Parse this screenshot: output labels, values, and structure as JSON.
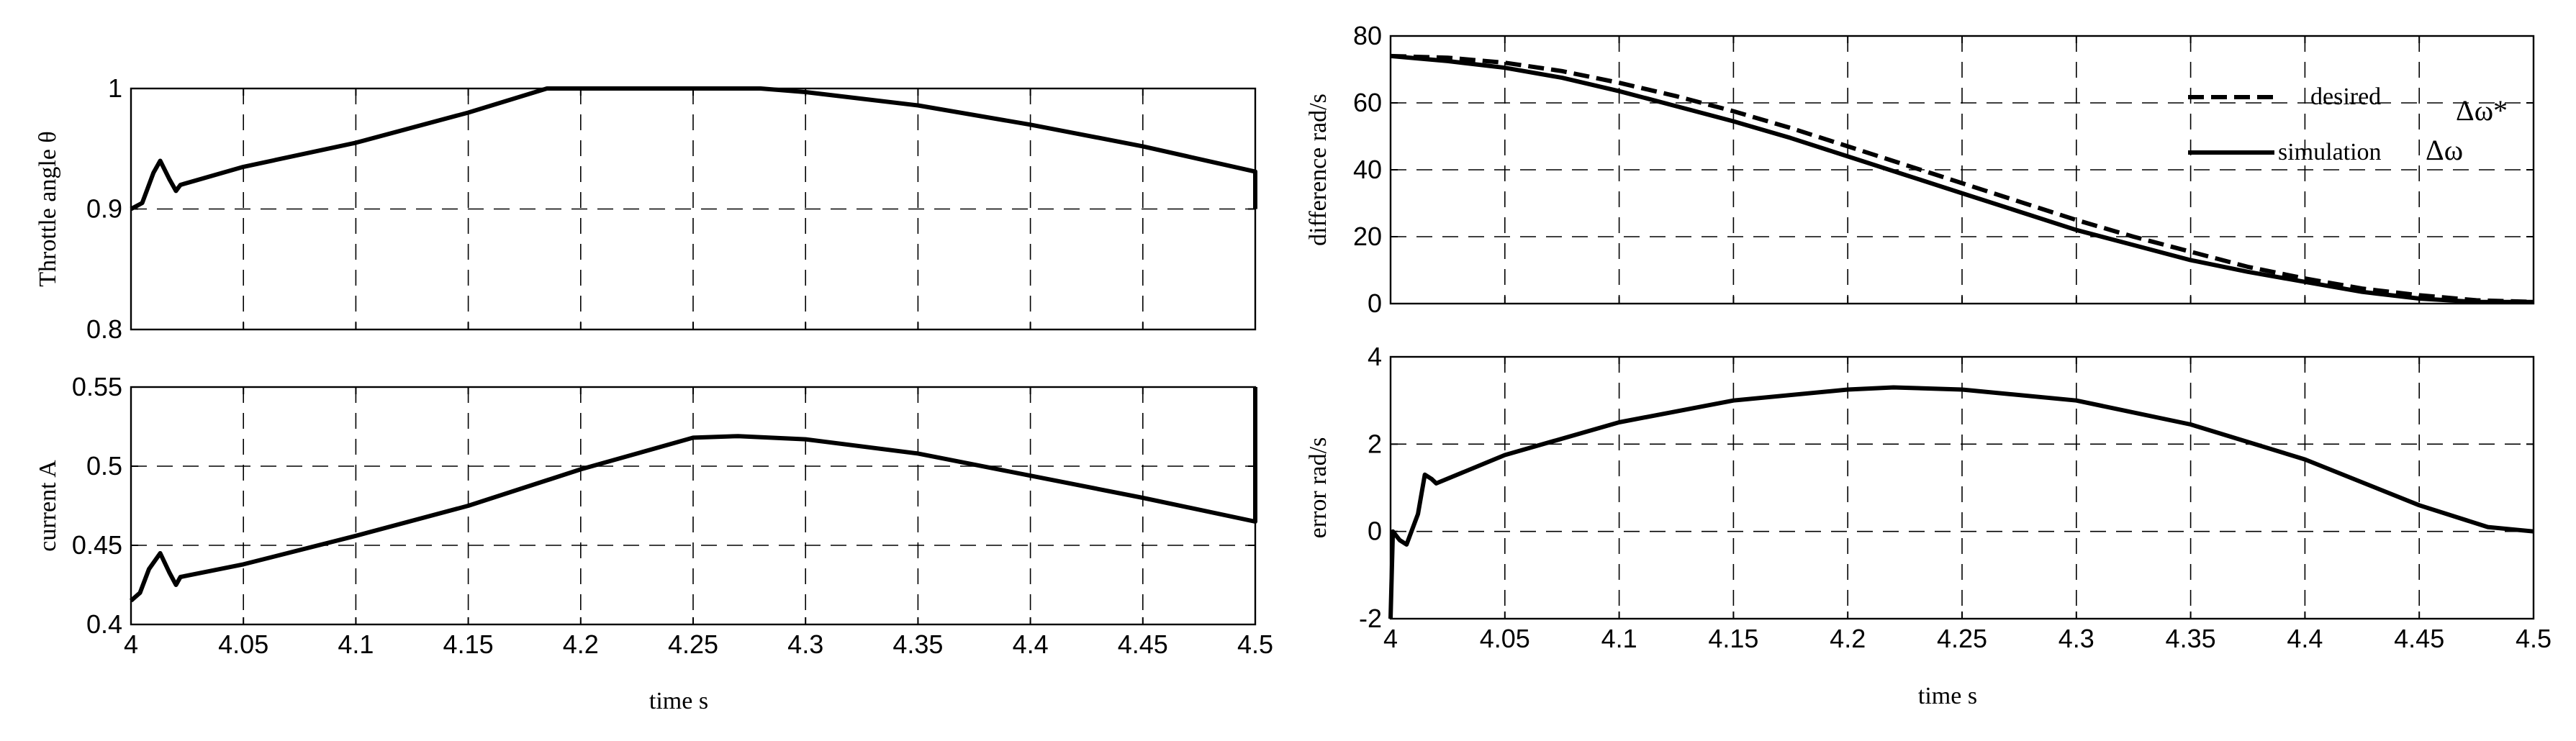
{
  "chart_data": [
    {
      "type": "line",
      "ylabel": "Throttle angle  θ",
      "xlabel": "",
      "xlim": [
        4,
        4.5
      ],
      "ylim": [
        0.8,
        1
      ],
      "xticks": [
        4,
        4.05,
        4.1,
        4.15,
        4.2,
        4.25,
        4.3,
        4.35,
        4.4,
        4.45,
        4.5
      ],
      "yticks": [
        0.8,
        0.9,
        1
      ],
      "xtick_labels": [],
      "ytick_labels": [
        "0.8",
        "0.9",
        "1"
      ],
      "grid": true,
      "series": [
        {
          "style": "solid",
          "x": [
            4,
            4.005,
            4.01,
            4.013,
            4.017,
            4.02,
            4.022,
            4.05,
            4.1,
            4.15,
            4.185,
            4.2,
            4.25,
            4.28,
            4.3,
            4.35,
            4.4,
            4.45,
            4.5,
            4.5
          ],
          "y": [
            0.9,
            0.905,
            0.93,
            0.94,
            0.925,
            0.915,
            0.92,
            0.935,
            0.955,
            0.98,
            1.0,
            1.0,
            1.0,
            1.0,
            0.997,
            0.986,
            0.97,
            0.952,
            0.931,
            0.9
          ]
        }
      ]
    },
    {
      "type": "line",
      "ylabel": "current    A",
      "xlabel": "time     s",
      "xlim": [
        4,
        4.5
      ],
      "ylim": [
        0.4,
        0.55
      ],
      "xticks": [
        4,
        4.05,
        4.1,
        4.15,
        4.2,
        4.25,
        4.3,
        4.35,
        4.4,
        4.45,
        4.5
      ],
      "yticks": [
        0.4,
        0.45,
        0.5,
        0.55
      ],
      "xtick_labels": [
        "4",
        "4.05",
        "4.1",
        "4.15",
        "4.2",
        "4.25",
        "4.3",
        "4.35",
        "4.4",
        "4.45",
        "4.5"
      ],
      "ytick_labels": [
        "0.4",
        "0.45",
        "0.5",
        "0.55"
      ],
      "grid": true,
      "series": [
        {
          "style": "solid",
          "x": [
            4,
            4.004,
            4.008,
            4.013,
            4.017,
            4.02,
            4.022,
            4.05,
            4.1,
            4.15,
            4.2,
            4.25,
            4.27,
            4.3,
            4.35,
            4.4,
            4.45,
            4.5,
            4.5
          ],
          "y": [
            0.415,
            0.42,
            0.435,
            0.445,
            0.433,
            0.425,
            0.43,
            0.438,
            0.456,
            0.475,
            0.498,
            0.518,
            0.519,
            0.517,
            0.508,
            0.494,
            0.48,
            0.465,
            0.55
          ]
        }
      ]
    },
    {
      "type": "line",
      "ylabel": "difference   rad/s",
      "xlabel": "",
      "xlim": [
        4,
        4.5
      ],
      "ylim": [
        0,
        80
      ],
      "xticks": [
        4,
        4.05,
        4.1,
        4.15,
        4.2,
        4.25,
        4.3,
        4.35,
        4.4,
        4.45,
        4.5
      ],
      "yticks": [
        0,
        20,
        40,
        60,
        80
      ],
      "xtick_labels": [],
      "ytick_labels": [
        "0",
        "20",
        "40",
        "60",
        "80"
      ],
      "grid": true,
      "legend": "top-right",
      "series": [
        {
          "name": "desired",
          "symbol": "Δω*",
          "style": "dashed",
          "x": [
            4,
            4.025,
            4.05,
            4.075,
            4.1,
            4.125,
            4.15,
            4.175,
            4.2,
            4.225,
            4.25,
            4.275,
            4.3,
            4.325,
            4.35,
            4.375,
            4.4,
            4.425,
            4.45,
            4.475,
            4.5
          ],
          "y": [
            74,
            73.5,
            72,
            69.5,
            66,
            62,
            57.5,
            52.5,
            47,
            41.5,
            36,
            30.5,
            25,
            20,
            15.5,
            11,
            7.5,
            4.5,
            2.5,
            1,
            0.5
          ]
        },
        {
          "name": "simulation",
          "symbol": "Δω",
          "style": "solid",
          "x": [
            4,
            4.025,
            4.05,
            4.075,
            4.1,
            4.125,
            4.15,
            4.175,
            4.2,
            4.225,
            4.25,
            4.275,
            4.3,
            4.325,
            4.35,
            4.375,
            4.4,
            4.425,
            4.45,
            4.475,
            4.5
          ],
          "y": [
            74,
            72.5,
            70.5,
            67.5,
            63.5,
            59,
            54.5,
            49.5,
            44,
            38.5,
            33,
            27.5,
            22,
            17.5,
            13,
            9.5,
            6.5,
            3.5,
            1.5,
            0.5,
            0.5
          ]
        }
      ]
    },
    {
      "type": "line",
      "ylabel": "error   rad/s",
      "xlabel": "time   s",
      "xlim": [
        4,
        4.5
      ],
      "ylim": [
        -2,
        4
      ],
      "xticks": [
        4,
        4.05,
        4.1,
        4.15,
        4.2,
        4.25,
        4.3,
        4.35,
        4.4,
        4.45,
        4.5
      ],
      "yticks": [
        -2,
        0,
        2,
        4
      ],
      "xtick_labels": [
        "4",
        "4.05",
        "4.1",
        "4.15",
        "4.2",
        "4.25",
        "4.3",
        "4.35",
        "4.4",
        "4.45",
        "4.5"
      ],
      "ytick_labels": [
        "-2",
        "0",
        "2",
        "4"
      ],
      "grid": true,
      "series": [
        {
          "style": "solid",
          "x": [
            4,
            4.001,
            4.004,
            4.007,
            4.012,
            4.015,
            4.018,
            4.02,
            4.05,
            4.1,
            4.15,
            4.2,
            4.22,
            4.25,
            4.3,
            4.35,
            4.4,
            4.45,
            4.48,
            4.5
          ],
          "y": [
            -2,
            0,
            -0.2,
            -0.3,
            0.4,
            1.3,
            1.2,
            1.1,
            1.75,
            2.5,
            3.0,
            3.25,
            3.3,
            3.25,
            3.0,
            2.45,
            1.65,
            0.6,
            0.1,
            0.0
          ]
        }
      ]
    }
  ]
}
